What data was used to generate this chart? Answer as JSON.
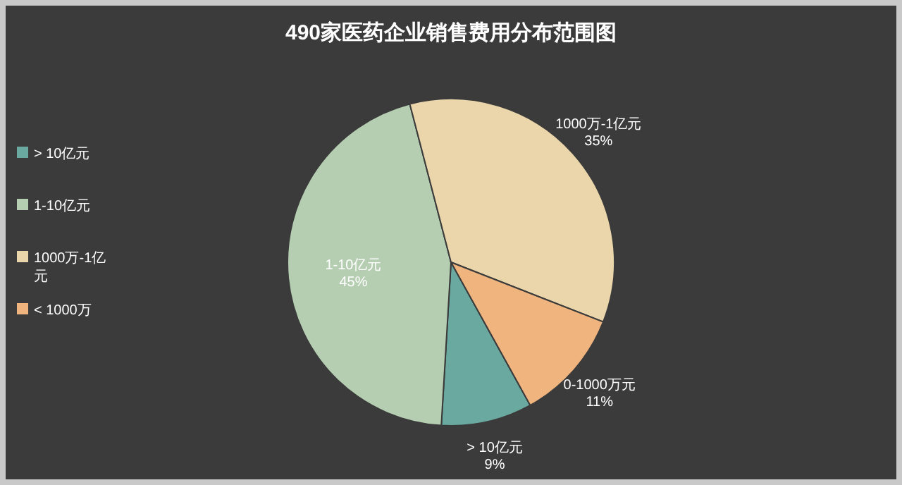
{
  "chart_data": {
    "type": "pie",
    "title": "490家医药企业销售费用分布范围图",
    "categories": [
      "> 10亿元",
      "1-10亿元",
      "1000万-1亿元",
      "< 1000万"
    ],
    "values": [
      9,
      45,
      35,
      11
    ],
    "colors": [
      "#6aa9a0",
      "#b5ceb2",
      "#ead6aa",
      "#f0b47e"
    ],
    "value_labels": [
      "> 10亿元\n9%",
      "1-10亿元\n45%",
      "1000万-1亿元\n35%",
      "0-1000万元\n11%"
    ],
    "legend": "left"
  }
}
